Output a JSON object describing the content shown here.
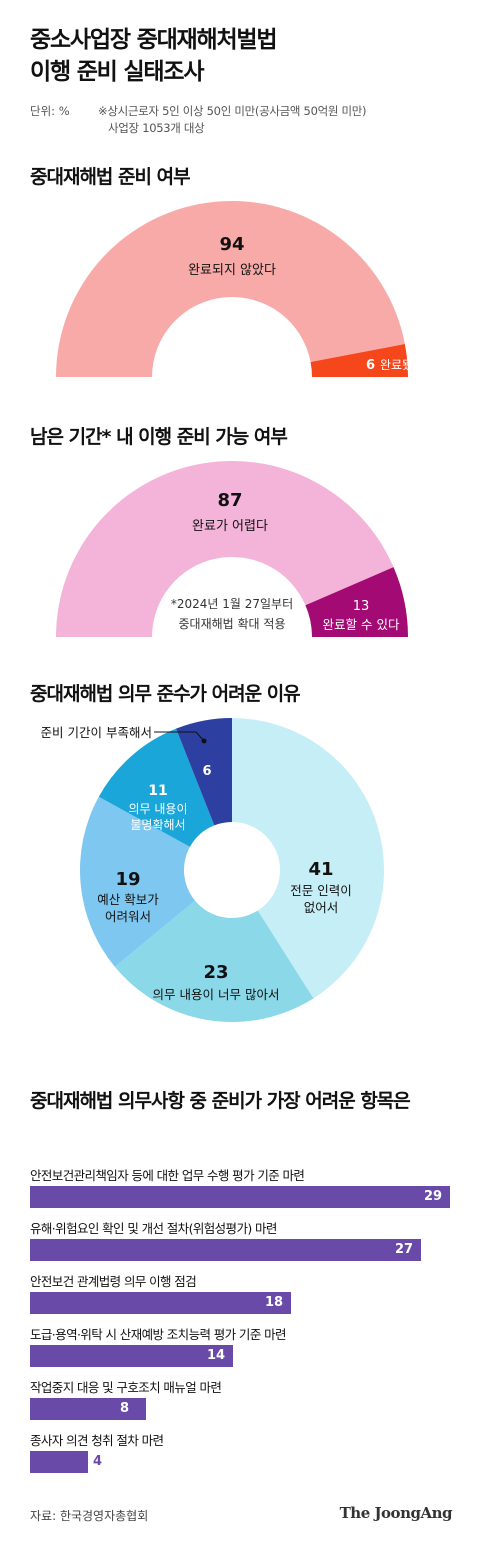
{
  "title_line1": "중소사업장 중대재해처벌법",
  "title_line2": "이행 준비 실태조사",
  "unit": "단위: %",
  "note_line1": "※상시근로자 5인 이상 50인 미만(공사금액 50억원 미만)",
  "note_line2": "사업장 1053개 대상",
  "source": "자료: 한국경영자총협회",
  "brand": "The JoongAng",
  "chart_data": [
    {
      "type": "pie",
      "subtype": "half-donut",
      "title": "중대재해법 준비 여부",
      "slices": [
        {
          "label": "완료되지 않았다",
          "value": 94,
          "color": "#f7aaa8"
        },
        {
          "label": "완료됐다",
          "value": 6,
          "color": "#f5461c"
        }
      ]
    },
    {
      "type": "pie",
      "subtype": "half-donut",
      "title": "남은 기간* 내 이행 준비 가능 여부",
      "footnote_line1": "*2024년 1월 27일부터",
      "footnote_line2": "중대재해법 확대 적용",
      "slices": [
        {
          "label": "완료가 어렵다",
          "value": 87,
          "color": "#f4b3d9"
        },
        {
          "label": "완료할 수 있다",
          "value": 13,
          "color": "#a30a74"
        }
      ]
    },
    {
      "type": "pie",
      "subtype": "donut",
      "title": "중대재해법 의무 준수가 어려운 이유",
      "slices": [
        {
          "label": "전문 인력이 없어서",
          "value": 41,
          "color": "#c6eef7"
        },
        {
          "label": "의무 내용이 너무 많아서",
          "value": 23,
          "color": "#8bd8e8"
        },
        {
          "label": "예산 확보가 어려워서",
          "value": 19,
          "color": "#7ec7f0"
        },
        {
          "label": "의무 내용이 불명확해서",
          "value": 11,
          "color": "#1aa6d8"
        },
        {
          "label": "준비 기간이 부족해서",
          "value": 6,
          "color": "#2d3fa0"
        }
      ]
    },
    {
      "type": "bar",
      "orientation": "horizontal",
      "title": "중대재해법 의무사항 중 준비가 가장 어려운 항목은",
      "color": "#6a4aa9",
      "categories": [
        "안전보건관리책임자 등에 대한 업무 수행 평가 기준 마련",
        "유해·위험요인 확인 및 개선 절차(위험성평가) 마련",
        "안전보건 관계법령 의무 이행 점검",
        "도급·용역·위탁 시 산재예방 조치능력 평가 기준 마련",
        "작업중지 대응 및 구호조치 매뉴얼 마련",
        "종사자 의견 청취 절차 마련"
      ],
      "values": [
        29,
        27,
        18,
        14,
        8,
        4
      ]
    }
  ]
}
